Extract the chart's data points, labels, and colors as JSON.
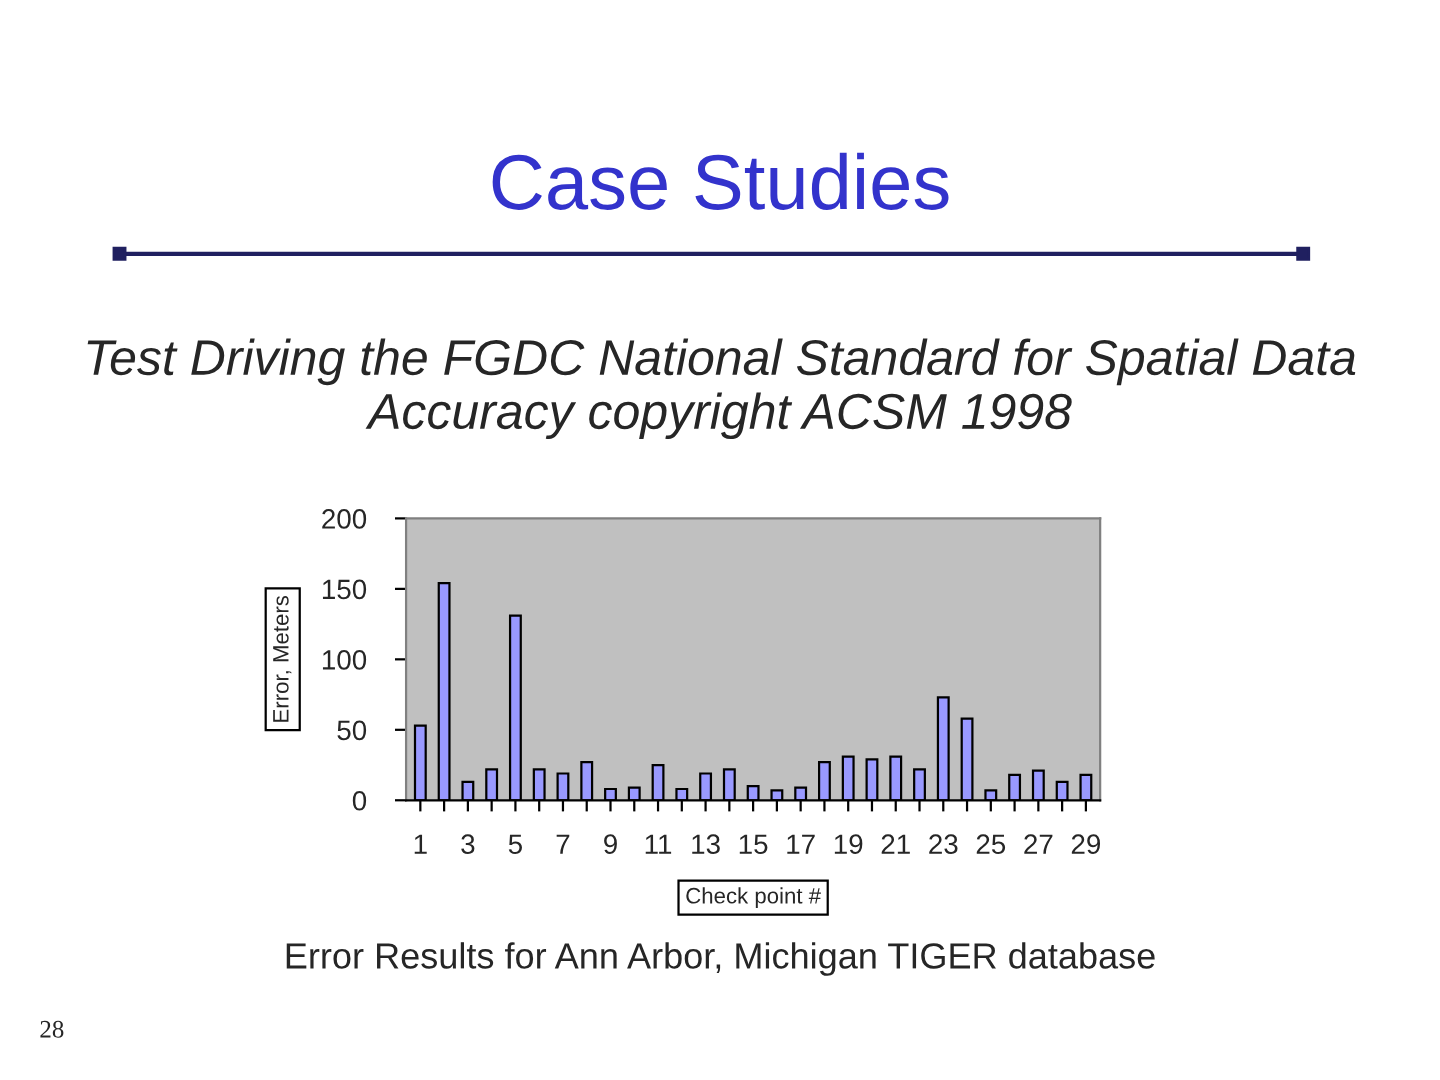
{
  "chart_data": {
    "type": "bar",
    "title": "Case Studies",
    "subtitle": "Test Driving the FGDC National Standard for Spatial Data Accuracy copyright ACSM 1998",
    "xlabel": "Check point #",
    "ylabel": "Error, Meters",
    "categories": [
      "1",
      null,
      "3",
      null,
      "5",
      null,
      "7",
      null,
      "9",
      null,
      "11",
      null,
      "13",
      null,
      "15",
      null,
      "17",
      null,
      "19",
      null,
      "21",
      null,
      "23",
      null,
      "25",
      null,
      "27",
      null,
      "29"
    ],
    "values": [
      53,
      154,
      13,
      22,
      131,
      22,
      19,
      27,
      8,
      9,
      25,
      8,
      19,
      22,
      10,
      7,
      9,
      27,
      31,
      29,
      31,
      22,
      73,
      58,
      7,
      18,
      21,
      13,
      18
    ],
    "color": "#9999ff",
    "ylim": [
      0,
      200
    ],
    "yticks": [
      0,
      50,
      100,
      150,
      200
    ],
    "grid": false,
    "legend": false,
    "annotations": [
      "Error Results for Ann Arbor, Michigan TIGER database",
      "28"
    ]
  }
}
